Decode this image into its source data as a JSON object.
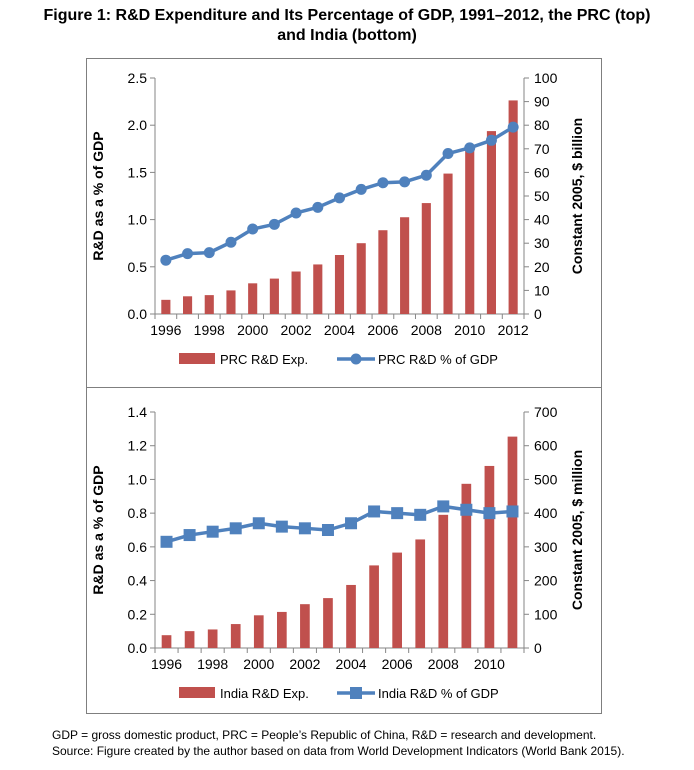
{
  "figure_title_line1": "Figure 1: R&D Expenditure and Its Percentage of GDP, 1991–2012, the PRC (top)",
  "figure_title_line2": "and India (bottom)",
  "footnote_line1": "GDP = gross domestic product, PRC = People’s Republic of China, R&D = research and development.",
  "footnote_line2": "Source: Figure created by the author based on data from World Development Indicators (World Bank 2015).",
  "colors": {
    "bar": "#c0504d",
    "line": "#4f81bd",
    "axis": "#868686",
    "frame": "#7f7f7f"
  },
  "chart_data": [
    {
      "type": "bar+line",
      "x": [
        1996,
        1997,
        1998,
        1999,
        2000,
        2001,
        2002,
        2003,
        2004,
        2005,
        2006,
        2007,
        2008,
        2009,
        2010,
        2011,
        2012
      ],
      "xtick_labels": [
        "1996",
        "1998",
        "2000",
        "2002",
        "2004",
        "2006",
        "2008",
        "2010",
        "2012"
      ],
      "ylabel": "R&D as a % of GDP",
      "y2label": "Constant 2005, $ billion",
      "ylim": [
        0,
        2.5
      ],
      "y2lim": [
        0,
        100
      ],
      "ytick_labels": [
        "0.0",
        "0.5",
        "1.0",
        "1.5",
        "2.0",
        "2.5"
      ],
      "y2tick_labels": [
        "0",
        "10",
        "20",
        "30",
        "40",
        "50",
        "60",
        "70",
        "80",
        "90",
        "100"
      ],
      "bar_series": {
        "name": "PRC R&D Exp.",
        "axis": "right",
        "marker": "bar",
        "values": [
          6,
          7.5,
          8,
          10,
          13,
          15,
          18,
          21,
          25,
          30,
          35.5,
          41,
          47,
          59.5,
          70,
          77.5,
          90.5
        ]
      },
      "line_series": {
        "name": "PRC R&D % of GDP",
        "axis": "left",
        "marker": "circle",
        "values": [
          0.57,
          0.64,
          0.65,
          0.76,
          0.9,
          0.95,
          1.07,
          1.13,
          1.23,
          1.32,
          1.39,
          1.4,
          1.47,
          1.7,
          1.76,
          1.84,
          1.98
        ]
      },
      "legend_position": "bottom",
      "grid": false
    },
    {
      "type": "bar+line",
      "x": [
        1996,
        1997,
        1998,
        1999,
        2000,
        2001,
        2002,
        2003,
        2004,
        2005,
        2006,
        2007,
        2008,
        2009,
        2010,
        2011
      ],
      "xtick_labels": [
        "1996",
        "1998",
        "2000",
        "2002",
        "2004",
        "2006",
        "2008",
        "2010"
      ],
      "ylabel": "R&D as a % of GDP",
      "y2label": "Constant 2005, $ million",
      "ylim": [
        0,
        1.4
      ],
      "y2lim": [
        0,
        700
      ],
      "ytick_labels": [
        "0.0",
        "0.2",
        "0.4",
        "0.6",
        "0.8",
        "1.0",
        "1.2",
        "1.4"
      ],
      "y2tick_labels": [
        "0",
        "100",
        "200",
        "300",
        "400",
        "500",
        "600",
        "700"
      ],
      "bar_series": {
        "name": "India R&D Exp.",
        "axis": "right",
        "marker": "bar",
        "values": [
          38,
          50,
          55,
          71,
          97,
          107,
          130,
          148,
          187,
          245,
          283,
          322,
          395,
          487,
          540,
          627
        ]
      },
      "line_series": {
        "name": "India R&D % of GDP",
        "axis": "left",
        "marker": "square",
        "values": [
          0.63,
          0.67,
          0.69,
          0.71,
          0.74,
          0.72,
          0.71,
          0.7,
          0.74,
          0.81,
          0.8,
          0.79,
          0.84,
          0.82,
          0.8,
          0.81
        ]
      },
      "legend_position": "bottom",
      "grid": false
    }
  ]
}
